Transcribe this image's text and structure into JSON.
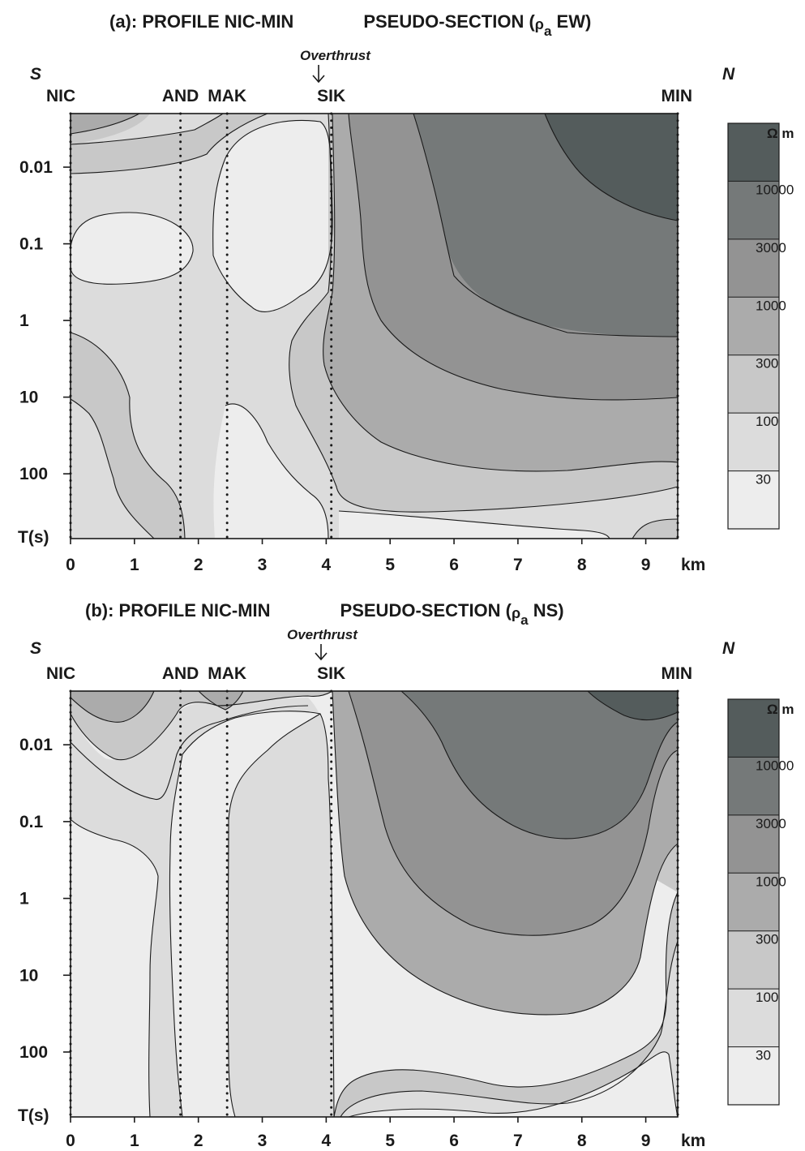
{
  "colors": {
    "levels": [
      "#ededed",
      "#dcdcdc",
      "#c8c8c8",
      "#ababab",
      "#939393",
      "#757979",
      "#545c5c"
    ],
    "contour_line": "#1a1a1a",
    "frame": "#1a1a1a"
  },
  "chart_data": [
    {
      "type": "heatmap",
      "panel": "a",
      "title": "(a): PROFILE   NIC-MIN        PSEUDO-SECTION (ρa EW)",
      "title_parts": [
        "(a): PROFILE   NIC-MIN",
        "PSEUDO-SECTION (",
        "ρ",
        "a",
        " EW)"
      ],
      "xlabel": "km",
      "ylabel": "T(s)",
      "x_range": [
        0,
        9.5
      ],
      "y_scale": "log",
      "y_range": [
        0.002,
        700
      ],
      "x_ticks": [
        0,
        1,
        2,
        3,
        4,
        5,
        6,
        7,
        8,
        9
      ],
      "y_ticks": [
        {
          "value": 0.01,
          "label": "0.01"
        },
        {
          "value": 0.1,
          "label": "0.1"
        },
        {
          "value": 1,
          "label": "1"
        },
        {
          "value": 10,
          "label": "10"
        },
        {
          "value": 100,
          "label": "100"
        }
      ],
      "side_labels": {
        "left": "S",
        "right": "N"
      },
      "overthrust": {
        "label": "Overthrust",
        "x": 3.95
      },
      "stations": [
        {
          "name": "NIC",
          "x": 0.0
        },
        {
          "name": "AND",
          "x": 1.72
        },
        {
          "name": "MAK",
          "x": 2.45
        },
        {
          "name": "SIK",
          "x": 4.08
        },
        {
          "name": "MIN",
          "x": 9.5
        }
      ],
      "legend": {
        "unit": "Ω m",
        "contour_levels": [
          10000,
          3000,
          1000,
          300,
          100,
          30
        ],
        "level_labels": [
          "10000",
          "3000",
          "1000",
          "300",
          "100",
          "30"
        ]
      }
    },
    {
      "type": "heatmap",
      "panel": "b",
      "title": "(b):  PROFILE   NIC-MIN        PSEUDO-SECTION (ρa NS)",
      "title_parts": [
        "(b):  PROFILE   NIC-MIN",
        "PSEUDO-SECTION (",
        "ρ",
        "a",
        " NS)"
      ],
      "xlabel": "km",
      "ylabel": "T(s)",
      "x_range": [
        0,
        9.5
      ],
      "y_scale": "log",
      "y_range": [
        0.002,
        700
      ],
      "x_ticks": [
        0,
        1,
        2,
        3,
        4,
        5,
        6,
        7,
        8,
        9
      ],
      "y_ticks": [
        {
          "value": 0.01,
          "label": "0.01"
        },
        {
          "value": 0.1,
          "label": "0.1"
        },
        {
          "value": 1,
          "label": "1"
        },
        {
          "value": 10,
          "label": "10"
        },
        {
          "value": 100,
          "label": "100"
        }
      ],
      "side_labels": {
        "left": "S",
        "right": "N"
      },
      "overthrust": {
        "label": "Overthrust",
        "x": 3.95
      },
      "stations": [
        {
          "name": "NIC",
          "x": 0.0
        },
        {
          "name": "AND",
          "x": 1.72
        },
        {
          "name": "MAK",
          "x": 2.45
        },
        {
          "name": "SIK",
          "x": 4.08
        },
        {
          "name": "MIN",
          "x": 9.5
        }
      ],
      "legend": {
        "unit": "Ω m",
        "contour_levels": [
          10000,
          3000,
          1000,
          300,
          100,
          30
        ],
        "level_labels": [
          "10000",
          "3000",
          "1000",
          "300",
          "100",
          "30"
        ]
      }
    }
  ]
}
